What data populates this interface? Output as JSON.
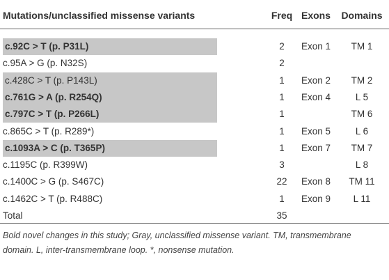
{
  "table": {
    "header": [
      "Mutations/unclassified missense variants",
      "Freq",
      "Exons",
      "Domains"
    ],
    "rows": [
      {
        "variant": "c.92C > T (p. P31L)",
        "bold": true,
        "gray": true,
        "freq": "2",
        "exon": "Exon 1",
        "domain": "TM 1"
      },
      {
        "variant": "c.95A > G (p. N32S)",
        "bold": false,
        "gray": false,
        "freq": "2"
      },
      {
        "variant": "c.428C > T (p. P143L)",
        "bold": false,
        "gray": true,
        "freq": "1",
        "exon": "Exon 2",
        "domain": "TM 2"
      },
      {
        "variant": "c.761G > A (p. R254Q)",
        "bold": true,
        "gray": true,
        "freq": "1",
        "exon": "Exon 4",
        "domain": "L 5"
      },
      {
        "variant": "c.797C > T (p. P266L)",
        "bold": true,
        "gray": true,
        "freq": "1",
        "domain": "TM 6"
      },
      {
        "variant": "c.865C > T (p. R289*)",
        "bold": false,
        "gray": false,
        "freq": "1",
        "exon": "Exon 5",
        "domain": "L 6"
      },
      {
        "variant": "c.1093A > C (p. T365P)",
        "bold": true,
        "gray": true,
        "freq": "1",
        "exon": "Exon 7",
        "domain": "TM 7"
      },
      {
        "variant": "c.1195C (p. R399W)",
        "bold": false,
        "gray": false,
        "freq": "3",
        "domain": "L 8"
      },
      {
        "variant": "c.1400C > G (p. S467C)",
        "bold": false,
        "gray": false,
        "freq": "22",
        "exon": "Exon 8",
        "domain": "TM 11"
      },
      {
        "variant": "c.1462C > T (p. R488C)",
        "bold": false,
        "gray": false,
        "freq": "1",
        "exon": "Exon 9",
        "domain": "L 11"
      },
      {
        "variant": "Total",
        "bold": false,
        "gray": false,
        "freq": "35"
      }
    ],
    "footnote": "Bold novel changes in this study; Gray, unclassified missense variant. TM, transmembrane domain. L, inter-transmembrane loop. *, nonsense mutation."
  }
}
